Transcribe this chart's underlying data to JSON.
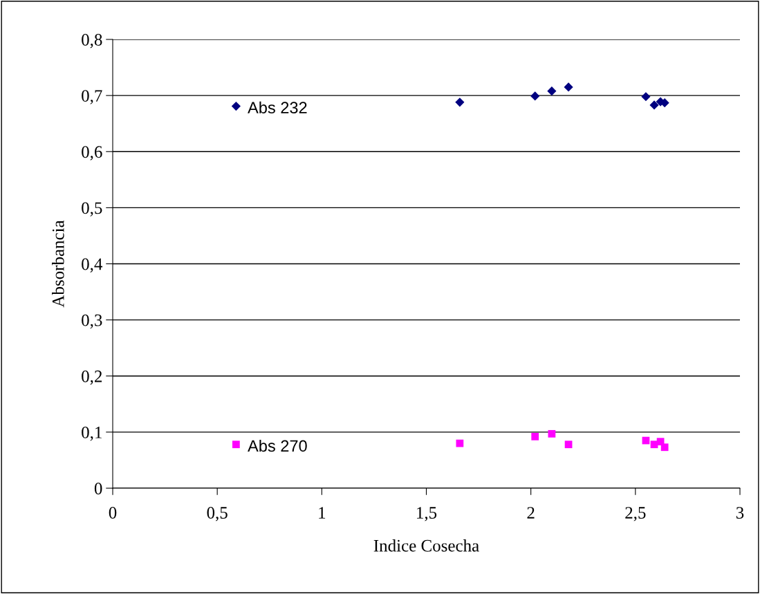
{
  "chart_data": {
    "type": "scatter",
    "xlabel": "Indice Cosecha",
    "ylabel": "Absorbancia",
    "xlim": [
      0,
      3
    ],
    "ylim": [
      0,
      0.8
    ],
    "xticks": [
      0,
      {
        "value": 0.5,
        "label": "0,5"
      },
      1,
      {
        "value": 1.5,
        "label": "1,5"
      },
      2,
      {
        "value": 2.5,
        "label": "2,5"
      },
      3
    ],
    "yticks": [
      0,
      {
        "value": 0.1,
        "label": "0,1"
      },
      {
        "value": 0.2,
        "label": "0,2"
      },
      {
        "value": 0.3,
        "label": "0,3"
      },
      {
        "value": 0.4,
        "label": "0,4"
      },
      {
        "value": 0.5,
        "label": "0,5"
      },
      {
        "value": 0.6,
        "label": "0,6"
      },
      {
        "value": 0.7,
        "label": "0,7"
      },
      {
        "value": 0.8,
        "label": "0,8"
      }
    ],
    "grid": "y",
    "x": [
      0.59,
      1.66,
      2.02,
      2.1,
      2.18,
      2.55,
      2.59,
      2.62,
      2.64
    ],
    "series": [
      {
        "name": "Abs 232",
        "color": "#000080",
        "marker": "diamond",
        "values": [
          0.681,
          0.688,
          0.699,
          0.708,
          0.715,
          0.698,
          0.683,
          0.689,
          0.687
        ]
      },
      {
        "name": "Abs 270",
        "color": "#ff00ff",
        "marker": "square",
        "values": [
          0.078,
          0.08,
          0.092,
          0.097,
          0.078,
          0.085,
          0.078,
          0.083,
          0.073
        ]
      }
    ]
  }
}
